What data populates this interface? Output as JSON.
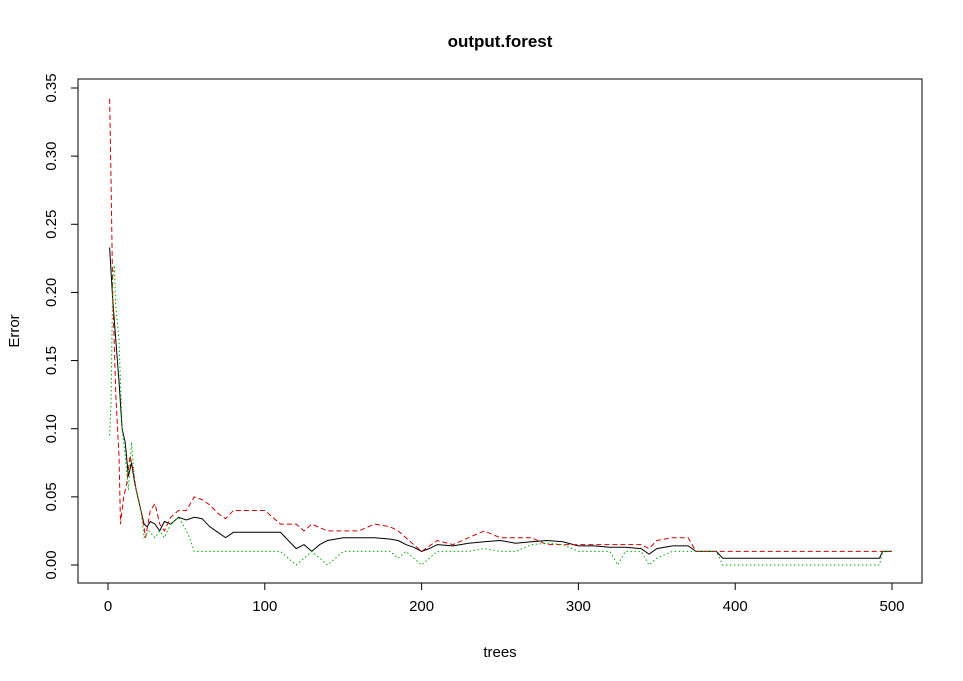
{
  "chart_data": {
    "type": "line",
    "title": "output.forest",
    "xlabel": "trees",
    "ylabel": "Error",
    "xlim": [
      0,
      500
    ],
    "ylim": [
      0,
      0.35
    ],
    "x_ticks": [
      0,
      100,
      200,
      300,
      400,
      500
    ],
    "y_ticks": [
      0.0,
      0.05,
      0.1,
      0.15,
      0.2,
      0.25,
      0.3,
      0.35
    ],
    "x_tick_labels": [
      "0",
      "100",
      "200",
      "300",
      "400",
      "500"
    ],
    "y_tick_labels": [
      "0.00",
      "0.05",
      "0.10",
      "0.15",
      "0.20",
      "0.25",
      "0.30",
      "0.35"
    ],
    "grid": false,
    "series": [
      {
        "color": "#000000",
        "dash": "solid",
        "points": [
          [
            1,
            0.233
          ],
          [
            3,
            0.195
          ],
          [
            5,
            0.165
          ],
          [
            7,
            0.135
          ],
          [
            9,
            0.1
          ],
          [
            11,
            0.09
          ],
          [
            13,
            0.065
          ],
          [
            15,
            0.075
          ],
          [
            17,
            0.06
          ],
          [
            19,
            0.05
          ],
          [
            21,
            0.04
          ],
          [
            23,
            0.03
          ],
          [
            25,
            0.028
          ],
          [
            27,
            0.032
          ],
          [
            30,
            0.03
          ],
          [
            33,
            0.025
          ],
          [
            36,
            0.032
          ],
          [
            40,
            0.03
          ],
          [
            45,
            0.035
          ],
          [
            50,
            0.033
          ],
          [
            55,
            0.035
          ],
          [
            60,
            0.034
          ],
          [
            65,
            0.028
          ],
          [
            70,
            0.024
          ],
          [
            75,
            0.02
          ],
          [
            80,
            0.024
          ],
          [
            90,
            0.024
          ],
          [
            100,
            0.024
          ],
          [
            110,
            0.024
          ],
          [
            115,
            0.018
          ],
          [
            120,
            0.012
          ],
          [
            125,
            0.015
          ],
          [
            130,
            0.01
          ],
          [
            135,
            0.015
          ],
          [
            140,
            0.018
          ],
          [
            145,
            0.019
          ],
          [
            150,
            0.02
          ],
          [
            160,
            0.02
          ],
          [
            170,
            0.02
          ],
          [
            180,
            0.019
          ],
          [
            185,
            0.018
          ],
          [
            190,
            0.015
          ],
          [
            195,
            0.013
          ],
          [
            200,
            0.01
          ],
          [
            205,
            0.012
          ],
          [
            210,
            0.015
          ],
          [
            220,
            0.014
          ],
          [
            230,
            0.016
          ],
          [
            240,
            0.017
          ],
          [
            250,
            0.018
          ],
          [
            260,
            0.016
          ],
          [
            270,
            0.017
          ],
          [
            280,
            0.018
          ],
          [
            290,
            0.017
          ],
          [
            300,
            0.014
          ],
          [
            310,
            0.014
          ],
          [
            320,
            0.013
          ],
          [
            330,
            0.013
          ],
          [
            340,
            0.012
          ],
          [
            345,
            0.008
          ],
          [
            350,
            0.012
          ],
          [
            360,
            0.014
          ],
          [
            370,
            0.014
          ],
          [
            375,
            0.01
          ],
          [
            380,
            0.01
          ],
          [
            388,
            0.01
          ],
          [
            392,
            0.005
          ],
          [
            400,
            0.005
          ],
          [
            450,
            0.005
          ],
          [
            492,
            0.005
          ],
          [
            494,
            0.01
          ],
          [
            500,
            0.01
          ]
        ]
      },
      {
        "color": "#cc0000",
        "dash": "dashed",
        "points": [
          [
            1,
            0.342
          ],
          [
            2,
            0.28
          ],
          [
            3,
            0.2
          ],
          [
            5,
            0.125
          ],
          [
            7,
            0.08
          ],
          [
            8,
            0.03
          ],
          [
            10,
            0.05
          ],
          [
            12,
            0.06
          ],
          [
            14,
            0.08
          ],
          [
            16,
            0.07
          ],
          [
            18,
            0.055
          ],
          [
            20,
            0.045
          ],
          [
            22,
            0.035
          ],
          [
            24,
            0.02
          ],
          [
            27,
            0.04
          ],
          [
            30,
            0.045
          ],
          [
            33,
            0.03
          ],
          [
            36,
            0.025
          ],
          [
            40,
            0.035
          ],
          [
            45,
            0.04
          ],
          [
            50,
            0.04
          ],
          [
            55,
            0.05
          ],
          [
            60,
            0.048
          ],
          [
            65,
            0.044
          ],
          [
            70,
            0.038
          ],
          [
            75,
            0.034
          ],
          [
            80,
            0.04
          ],
          [
            90,
            0.04
          ],
          [
            100,
            0.04
          ],
          [
            110,
            0.03
          ],
          [
            120,
            0.03
          ],
          [
            125,
            0.025
          ],
          [
            130,
            0.03
          ],
          [
            140,
            0.025
          ],
          [
            150,
            0.025
          ],
          [
            160,
            0.025
          ],
          [
            170,
            0.03
          ],
          [
            180,
            0.028
          ],
          [
            185,
            0.025
          ],
          [
            190,
            0.02
          ],
          [
            195,
            0.015
          ],
          [
            200,
            0.01
          ],
          [
            210,
            0.018
          ],
          [
            220,
            0.015
          ],
          [
            230,
            0.02
          ],
          [
            240,
            0.025
          ],
          [
            250,
            0.02
          ],
          [
            260,
            0.02
          ],
          [
            270,
            0.02
          ],
          [
            280,
            0.015
          ],
          [
            290,
            0.015
          ],
          [
            300,
            0.015
          ],
          [
            310,
            0.015
          ],
          [
            320,
            0.015
          ],
          [
            330,
            0.015
          ],
          [
            340,
            0.015
          ],
          [
            345,
            0.012
          ],
          [
            350,
            0.018
          ],
          [
            360,
            0.02
          ],
          [
            370,
            0.02
          ],
          [
            375,
            0.01
          ],
          [
            380,
            0.01
          ],
          [
            388,
            0.01
          ],
          [
            392,
            0.01
          ],
          [
            400,
            0.01
          ],
          [
            450,
            0.01
          ],
          [
            492,
            0.01
          ],
          [
            494,
            0.01
          ],
          [
            500,
            0.01
          ]
        ]
      },
      {
        "color": "#00aa00",
        "dash": "dotted",
        "points": [
          [
            1,
            0.095
          ],
          [
            2,
            0.12
          ],
          [
            3,
            0.21
          ],
          [
            4,
            0.22
          ],
          [
            5,
            0.19
          ],
          [
            7,
            0.165
          ],
          [
            9,
            0.1
          ],
          [
            11,
            0.08
          ],
          [
            13,
            0.055
          ],
          [
            15,
            0.09
          ],
          [
            17,
            0.06
          ],
          [
            19,
            0.05
          ],
          [
            21,
            0.04
          ],
          [
            23,
            0.02
          ],
          [
            26,
            0.025
          ],
          [
            30,
            0.02
          ],
          [
            33,
            0.025
          ],
          [
            36,
            0.02
          ],
          [
            40,
            0.03
          ],
          [
            45,
            0.035
          ],
          [
            50,
            0.025
          ],
          [
            52,
            0.02
          ],
          [
            55,
            0.01
          ],
          [
            60,
            0.01
          ],
          [
            70,
            0.01
          ],
          [
            80,
            0.01
          ],
          [
            90,
            0.01
          ],
          [
            100,
            0.01
          ],
          [
            110,
            0.01
          ],
          [
            115,
            0.005
          ],
          [
            120,
            0.0
          ],
          [
            125,
            0.005
          ],
          [
            130,
            0.01
          ],
          [
            135,
            0.005
          ],
          [
            140,
            0.0
          ],
          [
            145,
            0.005
          ],
          [
            150,
            0.01
          ],
          [
            160,
            0.01
          ],
          [
            170,
            0.01
          ],
          [
            180,
            0.01
          ],
          [
            185,
            0.005
          ],
          [
            190,
            0.01
          ],
          [
            195,
            0.005
          ],
          [
            200,
            0.0
          ],
          [
            205,
            0.005
          ],
          [
            210,
            0.01
          ],
          [
            220,
            0.01
          ],
          [
            230,
            0.01
          ],
          [
            240,
            0.012
          ],
          [
            250,
            0.01
          ],
          [
            260,
            0.01
          ],
          [
            270,
            0.015
          ],
          [
            280,
            0.016
          ],
          [
            290,
            0.015
          ],
          [
            300,
            0.01
          ],
          [
            310,
            0.01
          ],
          [
            320,
            0.01
          ],
          [
            325,
            0.0
          ],
          [
            330,
            0.01
          ],
          [
            340,
            0.01
          ],
          [
            345,
            0.0
          ],
          [
            350,
            0.005
          ],
          [
            360,
            0.01
          ],
          [
            370,
            0.01
          ],
          [
            375,
            0.01
          ],
          [
            380,
            0.01
          ],
          [
            388,
            0.01
          ],
          [
            392,
            0.0
          ],
          [
            400,
            0.0
          ],
          [
            450,
            0.0
          ],
          [
            492,
            0.0
          ],
          [
            494,
            0.01
          ],
          [
            500,
            0.01
          ]
        ]
      }
    ]
  }
}
